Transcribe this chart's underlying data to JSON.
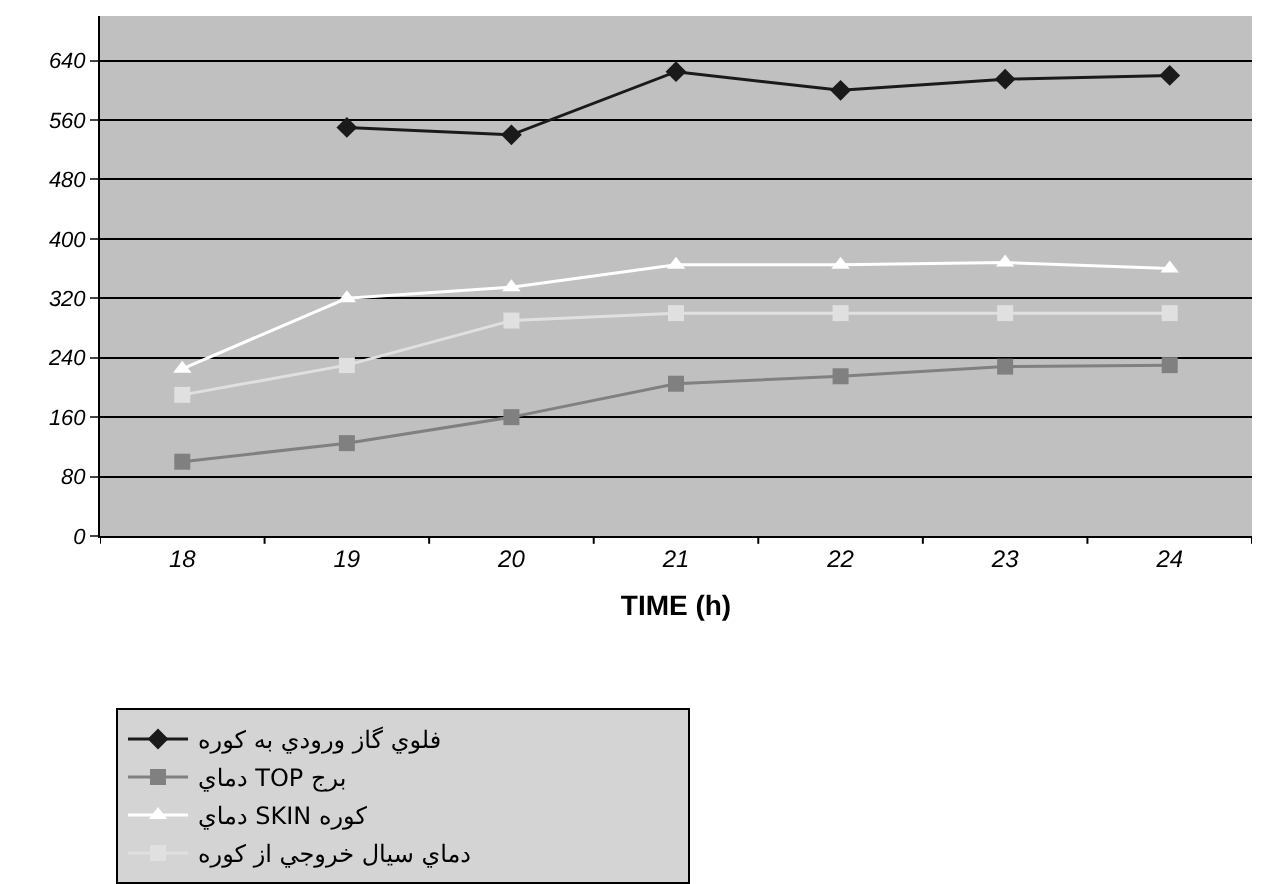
{
  "chart_data": {
    "type": "line",
    "xlabel": "TIME (h)",
    "categories": [
      "18",
      "19",
      "20",
      "21",
      "22",
      "23",
      "24"
    ],
    "series": [
      {
        "name": "فلوي گاز ورودي به کوره",
        "color": "#1a1a1a",
        "marker": "diamond",
        "values": [
          null,
          550,
          540,
          625,
          600,
          615,
          620
        ]
      },
      {
        "name": "دماي TOP برج",
        "color": "#808080",
        "marker": "square",
        "values": [
          100,
          125,
          160,
          205,
          215,
          228,
          230
        ]
      },
      {
        "name": "دماي SKIN کوره",
        "color": "#ffffff",
        "marker": "triangle",
        "values": [
          225,
          320,
          335,
          365,
          365,
          368,
          360
        ]
      },
      {
        "name": "دماي سيال خروجي از کوره",
        "color": "#e0e0e0",
        "marker": "square",
        "values": [
          190,
          230,
          290,
          300,
          300,
          300,
          300
        ]
      }
    ],
    "ylim": [
      0,
      700
    ],
    "yticks": [
      0,
      80,
      160,
      240,
      320,
      400,
      480,
      560,
      640
    ],
    "grid": "y",
    "legend": "bottom",
    "line_style": "solid"
  }
}
